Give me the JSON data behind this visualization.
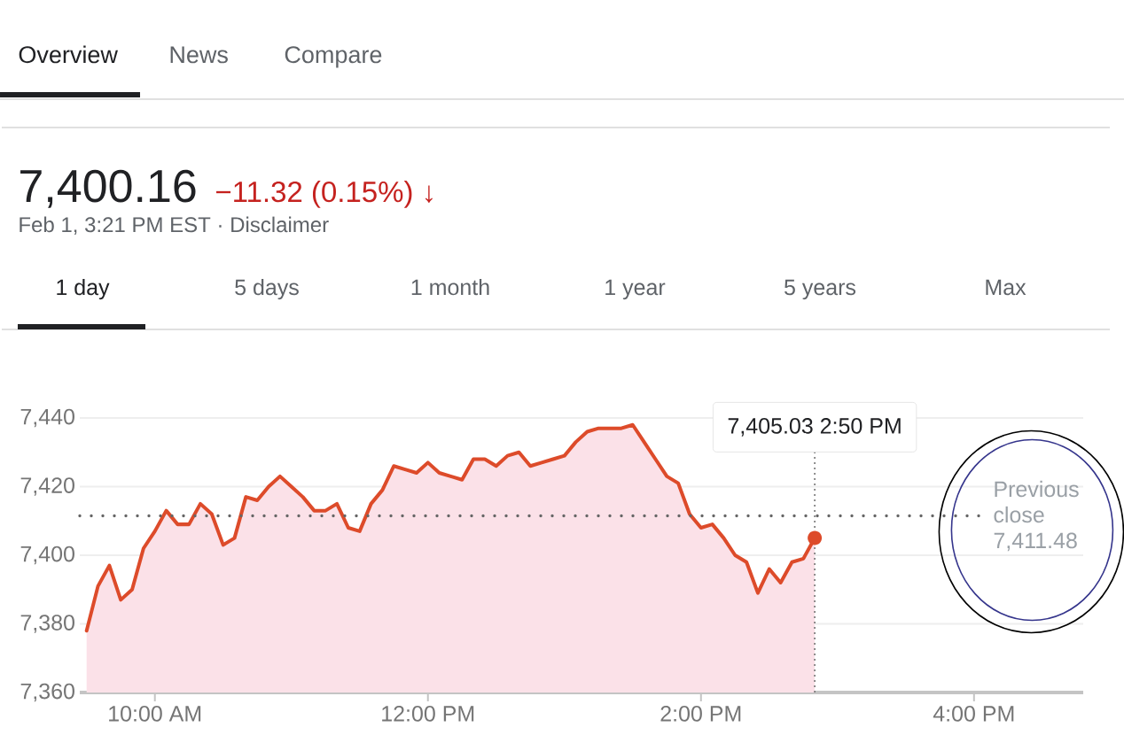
{
  "chart_data": {
    "type": "area",
    "title": "7,400.16",
    "subtitle": "−11.32 (0.15%) ↓",
    "x": [
      9.5,
      9.5833,
      9.6667,
      9.75,
      9.8333,
      9.9167,
      10,
      10.0833,
      10.1667,
      10.25,
      10.3333,
      10.4167,
      10.5,
      10.5833,
      10.6667,
      10.75,
      10.8333,
      10.9167,
      11,
      11.0833,
      11.1667,
      11.25,
      11.3333,
      11.4167,
      11.5,
      11.5833,
      11.6667,
      11.75,
      11.8333,
      11.9167,
      12,
      12.0833,
      12.1667,
      12.25,
      12.3333,
      12.4167,
      12.5,
      12.5833,
      12.6667,
      12.75,
      12.8333,
      12.9167,
      13,
      13.0833,
      13.1667,
      13.25,
      13.3333,
      13.4167,
      13.5,
      13.5833,
      13.6667,
      13.75,
      13.8333,
      13.9167,
      14,
      14.0833,
      14.1667,
      14.25,
      14.3333,
      14.4167,
      14.5,
      14.5833,
      14.6667,
      14.75,
      14.8333
    ],
    "values": [
      7378,
      7391,
      7397,
      7387,
      7390,
      7402,
      7407,
      7413,
      7409,
      7409,
      7415,
      7412,
      7403,
      7405,
      7417,
      7416,
      7420,
      7423,
      7420,
      7417,
      7413,
      7413,
      7415,
      7408,
      7407,
      7415,
      7419,
      7426,
      7425,
      7424,
      7427,
      7424,
      7423,
      7422,
      7428,
      7428,
      7426,
      7429,
      7430,
      7426,
      7427,
      7428,
      7429,
      7433,
      7436,
      7437,
      7437,
      7437,
      7438,
      7433,
      7428,
      7423,
      7421,
      7412,
      7408,
      7409,
      7405,
      7400,
      7398,
      7389,
      7396,
      7392,
      7398,
      7399,
      7405.03
    ],
    "color": "#dd4b2a",
    "xlim": [
      9.45,
      16.8
    ],
    "ylim": [
      7360,
      7440
    ],
    "xticks": [
      {
        "value": 10,
        "label": "10:00 AM"
      },
      {
        "value": 12,
        "label": "12:00 PM"
      },
      {
        "value": 14,
        "label": "2:00 PM"
      },
      {
        "value": 16,
        "label": "4:00 PM"
      }
    ],
    "yticks": [
      {
        "value": 7360,
        "label": "7,360"
      },
      {
        "value": 7380,
        "label": "7,380"
      },
      {
        "value": 7400,
        "label": "7,400"
      },
      {
        "value": 7420,
        "label": "7,420"
      },
      {
        "value": 7440,
        "label": "7,440"
      }
    ],
    "grid": "y",
    "ref_lines": [
      {
        "axis": "y",
        "value": 7411.48,
        "label": "Previous close 7,411.48",
        "color": "#666666",
        "line_style": "dotted"
      },
      {
        "axis": "x",
        "value": 14.8333,
        "color": "#757575",
        "line_style": "dotted"
      }
    ],
    "annotations": [
      "Feb 1, 3:21 PM EST · Disclaimer",
      "Overview",
      "News",
      "Compare",
      "1 day",
      "5 days",
      "1 month",
      "1 year",
      "5 years",
      "Max",
      {
        "text": "7,405.03 2:50 PM",
        "x": 14.8333
      }
    ]
  }
}
